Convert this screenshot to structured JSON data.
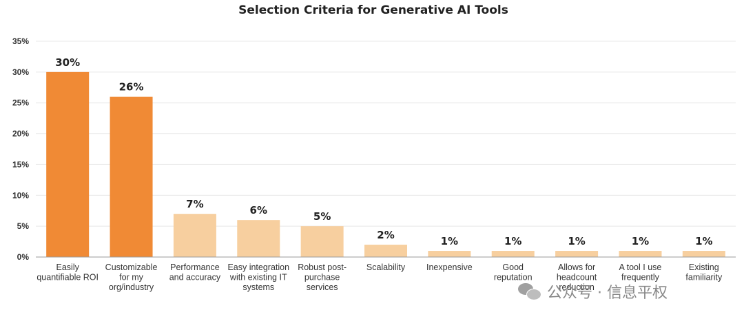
{
  "chart_data": {
    "type": "bar",
    "title": "Selection Criteria for Generative AI Tools",
    "xlabel": "",
    "ylabel": "",
    "ylim": [
      0,
      35
    ],
    "yticks": [
      0,
      5,
      10,
      15,
      20,
      25,
      30,
      35
    ],
    "ytick_labels": [
      "0%",
      "5%",
      "10%",
      "15%",
      "20%",
      "25%",
      "30%",
      "35%"
    ],
    "grid": true,
    "legend": "none",
    "categories": [
      [
        "Easily",
        "quantifiable ROI"
      ],
      [
        "Customizable",
        "for my",
        "org/industry"
      ],
      [
        "Performance",
        "and accuracy"
      ],
      [
        "Easy integration",
        "with existing IT",
        "systems"
      ],
      [
        "Robust post-",
        "purchase",
        "services"
      ],
      [
        "Scalability"
      ],
      [
        "Inexpensive"
      ],
      [
        "Good",
        "reputation"
      ],
      [
        "Allows for",
        "headcount",
        "reduction"
      ],
      [
        "A tool I use",
        "frequently"
      ],
      [
        "Existing",
        "familiarity"
      ]
    ],
    "values": [
      30,
      26,
      7,
      6,
      5,
      2,
      1,
      1,
      1,
      1,
      1
    ],
    "data_labels": [
      "30%",
      "26%",
      "7%",
      "6%",
      "5%",
      "2%",
      "1%",
      "1%",
      "1%",
      "1%",
      "1%"
    ],
    "colors": {
      "highlight": "#F08A35",
      "default": "#F7CF9F"
    },
    "highlighted": [
      0,
      1
    ]
  },
  "watermark": {
    "icon": "wechat-icon",
    "text": "公众号 · 信息平权"
  }
}
